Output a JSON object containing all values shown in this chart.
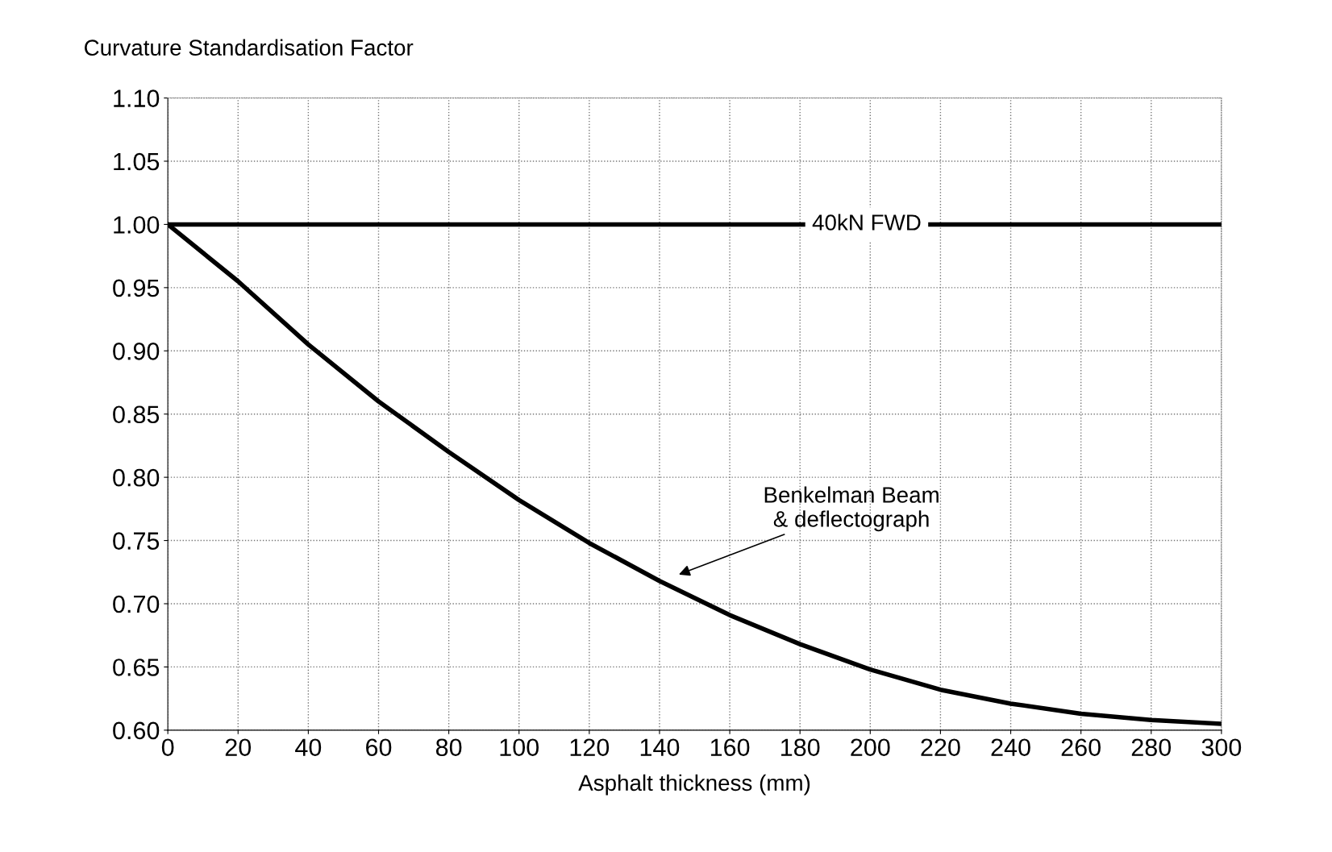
{
  "chart_data": {
    "type": "line",
    "ylabel": "Curvature Standardisation Factor",
    "xlabel": "Asphalt thickness (mm)",
    "x": [
      0,
      20,
      40,
      60,
      80,
      100,
      120,
      140,
      160,
      180,
      200,
      220,
      240,
      260,
      280,
      300
    ],
    "series": [
      {
        "color": "#000000",
        "x": [
          0,
          300
        ],
        "values": [
          1.0,
          1.0
        ]
      },
      {
        "color": "#000000",
        "values": [
          1.0,
          0.955,
          0.905,
          0.86,
          0.82,
          0.782,
          0.748,
          0.718,
          0.691,
          0.668,
          0.648,
          0.632,
          0.621,
          0.613,
          0.608,
          0.605
        ]
      }
    ],
    "annotations": [
      {
        "text": "40kN FWD",
        "x": 199,
        "y": 1.0
      },
      "Benkelman Beam\n& deflectograph"
    ],
    "xlim": [
      0,
      300
    ],
    "xticks": [
      0,
      20,
      40,
      60,
      80,
      100,
      120,
      140,
      160,
      180,
      200,
      220,
      240,
      260,
      280,
      300
    ],
    "ylim": [
      0.6,
      1.1
    ],
    "yticks": [
      {
        "value": 0.6,
        "label": "0.60"
      },
      {
        "value": 0.65,
        "label": "0.65"
      },
      {
        "value": 0.7,
        "label": "0.70"
      },
      {
        "value": 0.75,
        "label": "0.75"
      },
      {
        "value": 0.8,
        "label": "0.80"
      },
      {
        "value": 0.85,
        "label": "0.85"
      },
      {
        "value": 0.9,
        "label": "0.90"
      },
      {
        "value": 0.95,
        "label": "0.95"
      },
      {
        "value": 1.0,
        "label": "1.00"
      },
      {
        "value": 1.05,
        "label": "1.05"
      },
      {
        "value": 1.1,
        "label": "1.10"
      }
    ],
    "grid": true,
    "marker": "none",
    "line_style": "solid",
    "legend": false
  }
}
